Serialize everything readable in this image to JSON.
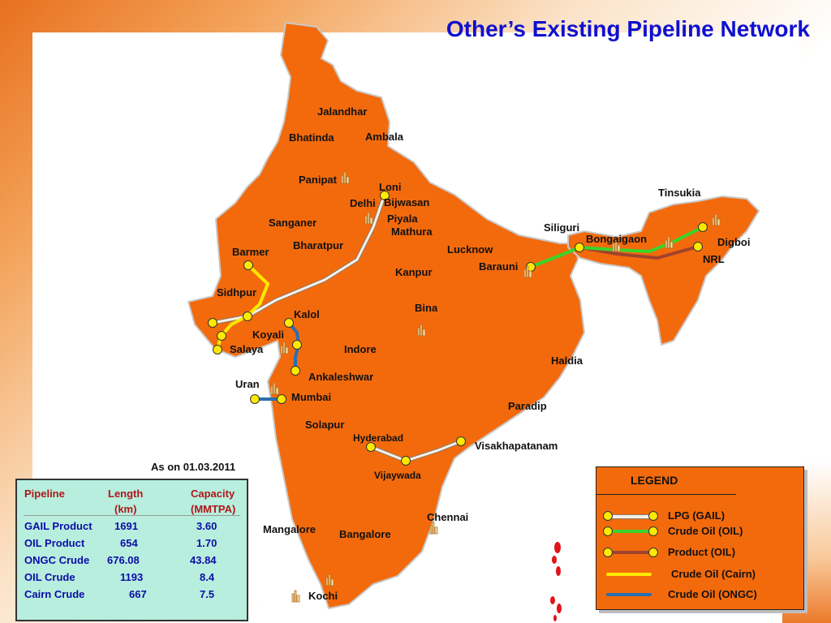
{
  "title": "Other’s Existing Pipeline Network",
  "as_of": "As on 01.03.2011",
  "places": {
    "jalandhar": "Jalandhar",
    "bhatinda": "Bhatinda",
    "ambala": "Ambala",
    "panipat": "Panipat",
    "loni": "Loni",
    "delhi": "Delhi",
    "bijwasan": "Bijwasan",
    "piyala": "Piyala",
    "mathura": "Mathura",
    "sanganer": "Sanganer",
    "bharatpur": "Bharatpur",
    "barmer": "Barmer",
    "sidhpur": "Sidhpur",
    "kalol": "Kalol",
    "koyali": "Koyali",
    "salaya": "Salaya",
    "indore": "Indore",
    "ankaleshwar": "Ankaleshwar",
    "uran": "Uran",
    "mumbai": "Mumbai",
    "solapur": "Solapur",
    "hyderabad": "Hyderabad",
    "visakhapatanam": "Visakhapatanam",
    "vijaywada": "Vijaywada",
    "chennai": "Chennai",
    "mangalore": "Mangalore",
    "bangalore": "Bangalore",
    "kochi": "Kochi",
    "lucknow": "Lucknow",
    "kanpur": "Kanpur",
    "bina": "Bina",
    "barauni": "Barauni",
    "siliguri": "Siliguri",
    "bongaigaon": "Bongaigaon",
    "tinsukia": "Tinsukia",
    "digboi": "Digboi",
    "nrl": "NRL",
    "haldia": "Haldia",
    "paradip": "Paradip"
  },
  "table": {
    "headers": {
      "pipeline": "Pipeline",
      "length": "Length",
      "length_unit": "(km)",
      "capacity": "Capacity",
      "capacity_unit": "(MMTPA)"
    },
    "rows": [
      {
        "pipeline": "GAIL Product",
        "length": "1691",
        "capacity": "3.60"
      },
      {
        "pipeline": "OIL Product",
        "length": "654",
        "capacity": "1.70"
      },
      {
        "pipeline": "ONGC Crude",
        "length": "676.08",
        "capacity": "43.84"
      },
      {
        "pipeline": "OIL Crude",
        "length": "1193",
        "capacity": "8.4"
      },
      {
        "pipeline": "Cairn Crude",
        "length": "667",
        "capacity": "7.5"
      }
    ]
  },
  "legend": {
    "title": "LEGEND",
    "items": [
      {
        "label": "LPG (GAIL)",
        "color": "#f7f1e6",
        "edge": "#8a7a6a"
      },
      {
        "label": "Crude Oil (OIL)",
        "color": "#3ad42a",
        "edge": "#3ad42a"
      },
      {
        "label": "Product (OIL)",
        "color": "#a0432e",
        "edge": "#a0432e"
      },
      {
        "label": "Crude Oil (Cairn)",
        "color": "#ffe800",
        "edge": "#ffe800"
      },
      {
        "label": "Crude Oil (ONGC)",
        "color": "#2a6fb0",
        "edge": "#2a6fb0"
      }
    ]
  },
  "colors": {
    "map_fill": "#f36a0c",
    "title": "#1010d0",
    "table_bg": "#b7eedd",
    "table_header": "#b0161a",
    "table_text": "#0c0ca8",
    "node": "#ffe900"
  }
}
